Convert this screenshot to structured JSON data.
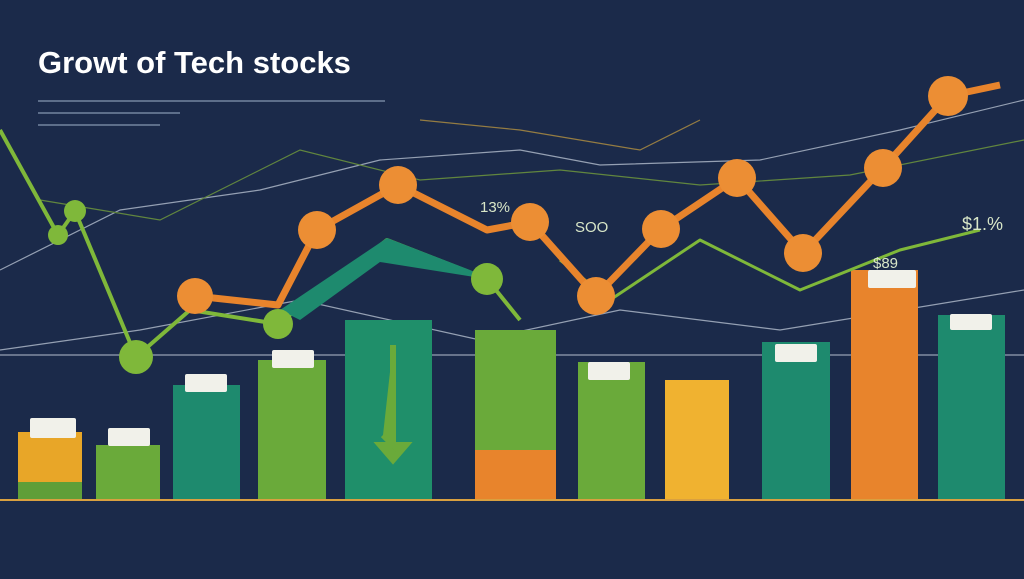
{
  "title": "Growt of Tech stocks",
  "labels": [
    "13%",
    "SOO",
    "$1.%",
    "$89"
  ]
}
